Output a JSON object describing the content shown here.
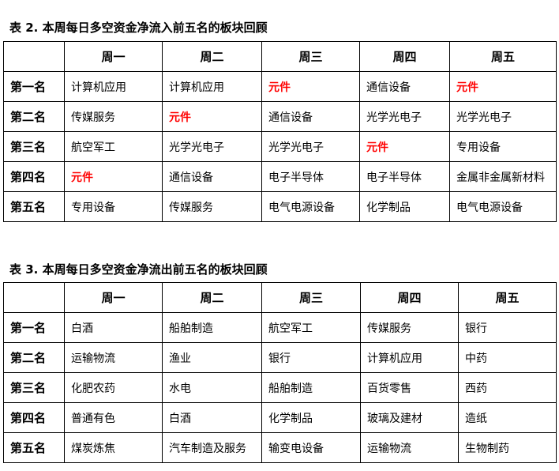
{
  "accent_red": "#ff0000",
  "table2": {
    "title": "表 2.  本周每日多空资金净流入前五名的板块回顾",
    "headers": [
      "",
      "周一",
      "周二",
      "周三",
      "周四",
      "周五"
    ],
    "rows": [
      {
        "rank": "第一名",
        "cells": [
          {
            "text": "计算机应用",
            "red": false
          },
          {
            "text": "计算机应用",
            "red": false
          },
          {
            "text": "元件",
            "red": true
          },
          {
            "text": "通信设备",
            "red": false
          },
          {
            "text": "元件",
            "red": true
          }
        ]
      },
      {
        "rank": "第二名",
        "cells": [
          {
            "text": "传媒服务",
            "red": false
          },
          {
            "text": "元件",
            "red": true
          },
          {
            "text": "通信设备",
            "red": false
          },
          {
            "text": "光学光电子",
            "red": false
          },
          {
            "text": "光学光电子",
            "red": false
          }
        ]
      },
      {
        "rank": "第三名",
        "cells": [
          {
            "text": "航空军工",
            "red": false
          },
          {
            "text": "光学光电子",
            "red": false
          },
          {
            "text": "光学光电子",
            "red": false
          },
          {
            "text": "元件",
            "red": true
          },
          {
            "text": "专用设备",
            "red": false
          }
        ]
      },
      {
        "rank": "第四名",
        "cells": [
          {
            "text": "元件",
            "red": true
          },
          {
            "text": "通信设备",
            "red": false
          },
          {
            "text": "电子半导体",
            "red": false
          },
          {
            "text": "电子半导体",
            "red": false
          },
          {
            "text": "金属非金属新材料",
            "red": false
          }
        ]
      },
      {
        "rank": "第五名",
        "cells": [
          {
            "text": "专用设备",
            "red": false
          },
          {
            "text": "传媒服务",
            "red": false
          },
          {
            "text": "电气电源设备",
            "red": false
          },
          {
            "text": "化学制品",
            "red": false
          },
          {
            "text": "电气电源设备",
            "red": false
          }
        ]
      }
    ]
  },
  "table3": {
    "title": "表 3. 本周每日多空资金净流出前五名的板块回顾",
    "headers": [
      "",
      "周一",
      "周二",
      "周三",
      "周四",
      "周五"
    ],
    "rows": [
      {
        "rank": "第一名",
        "cells": [
          {
            "text": "白酒"
          },
          {
            "text": "船舶制造"
          },
          {
            "text": "航空军工"
          },
          {
            "text": "传媒服务"
          },
          {
            "text": "银行"
          }
        ]
      },
      {
        "rank": "第二名",
        "cells": [
          {
            "text": "运输物流"
          },
          {
            "text": "渔业"
          },
          {
            "text": "银行"
          },
          {
            "text": "计算机应用"
          },
          {
            "text": "中药"
          }
        ]
      },
      {
        "rank": "第三名",
        "cells": [
          {
            "text": "化肥农药"
          },
          {
            "text": "水电"
          },
          {
            "text": "船舶制造"
          },
          {
            "text": "百货零售"
          },
          {
            "text": "西药"
          }
        ]
      },
      {
        "rank": "第四名",
        "cells": [
          {
            "text": "普通有色"
          },
          {
            "text": "白酒"
          },
          {
            "text": "化学制品"
          },
          {
            "text": "玻璃及建材"
          },
          {
            "text": "造纸"
          }
        ]
      },
      {
        "rank": "第五名",
        "cells": [
          {
            "text": "煤炭炼焦"
          },
          {
            "text": "汽车制造及服务"
          },
          {
            "text": "输变电设备"
          },
          {
            "text": "运输物流"
          },
          {
            "text": "生物制药"
          }
        ]
      }
    ]
  }
}
